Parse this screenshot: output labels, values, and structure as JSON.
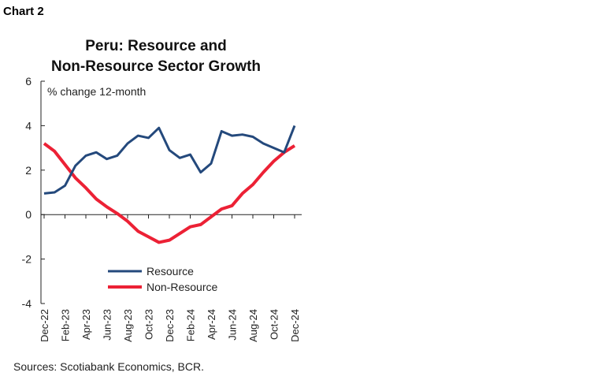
{
  "chart_label": "Chart 2",
  "source": "Sources: Scotiabank Economics, BCR.",
  "chart_data": {
    "type": "line",
    "title_lines": [
      "Peru: Resource and",
      "Non-Resource Sector Growth"
    ],
    "ylabel": "%  change 12-month",
    "ylim": [
      -4,
      6
    ],
    "yticks": [
      -4,
      -2,
      0,
      2,
      4,
      6
    ],
    "x": [
      "Dec-22",
      "Jan-23",
      "Feb-23",
      "Mar-23",
      "Apr-23",
      "May-23",
      "Jun-23",
      "Jul-23",
      "Aug-23",
      "Sep-23",
      "Oct-23",
      "Nov-23",
      "Dec-23",
      "Jan-24",
      "Feb-24",
      "Mar-24",
      "Apr-24",
      "May-24",
      "Jun-24",
      "Jul-24",
      "Aug-24",
      "Sep-24",
      "Oct-24",
      "Nov-24",
      "Dec-24"
    ],
    "xtick_labels": [
      "Dec-22",
      "Feb-23",
      "Apr-23",
      "Jun-23",
      "Aug-23",
      "Oct-23",
      "Dec-23",
      "Feb-24",
      "Apr-24",
      "Jun-24",
      "Aug-24",
      "Oct-24",
      "Dec-24"
    ],
    "grid": false,
    "legend": "bottom-center",
    "series": [
      {
        "name": "Resource",
        "color": "#24497c",
        "values": [
          0.95,
          1.0,
          1.3,
          2.2,
          2.65,
          2.8,
          2.5,
          2.65,
          3.2,
          3.55,
          3.45,
          3.9,
          2.9,
          2.55,
          2.7,
          1.9,
          2.3,
          3.75,
          3.55,
          3.6,
          3.5,
          3.2,
          3.0,
          2.8,
          4.0
        ]
      },
      {
        "name": "Non-Resource",
        "color": "#ec2135",
        "values": [
          3.2,
          2.85,
          2.25,
          1.65,
          1.2,
          0.7,
          0.35,
          0.05,
          -0.3,
          -0.75,
          -1.0,
          -1.25,
          -1.15,
          -0.85,
          -0.55,
          -0.45,
          -0.1,
          0.25,
          0.4,
          0.95,
          1.35,
          1.9,
          2.4,
          2.8,
          3.1
        ]
      }
    ]
  }
}
